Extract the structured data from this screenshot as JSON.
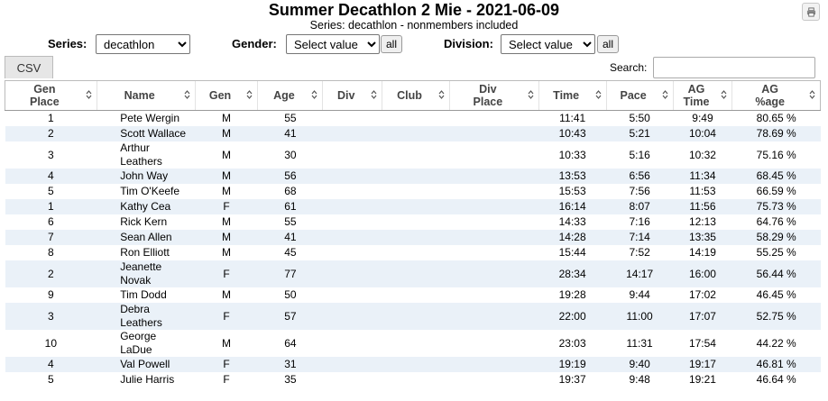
{
  "header": {
    "title": "Summer Decathlon 2 Mie - 2021-06-09",
    "subtitle": "Series: decathlon - nonmembers included"
  },
  "filters": {
    "series_label": "Series:",
    "series_value": "decathlon",
    "gender_label": "Gender:",
    "gender_value": "Select value",
    "gender_all": "all",
    "division_label": "Division:",
    "division_value": "Select value",
    "division_all": "all"
  },
  "toolbar": {
    "csv_label": "CSV",
    "search_label": "Search:",
    "search_value": ""
  },
  "icons": {
    "print": "print-icon",
    "sort": "sort-arrows-icon"
  },
  "columns": [
    {
      "l1": "Gen",
      "l2": "Place"
    },
    {
      "l1": "Name",
      "l2": ""
    },
    {
      "l1": "Gen",
      "l2": ""
    },
    {
      "l1": "Age",
      "l2": ""
    },
    {
      "l1": "Div",
      "l2": ""
    },
    {
      "l1": "Club",
      "l2": ""
    },
    {
      "l1": "Div",
      "l2": "Place"
    },
    {
      "l1": "Time",
      "l2": ""
    },
    {
      "l1": "Pace",
      "l2": ""
    },
    {
      "l1": "AG",
      "l2": "Time"
    },
    {
      "l1": "AG",
      "l2": "%age"
    }
  ],
  "rows": [
    {
      "gen_place": "1",
      "name": [
        "Pete Wergin"
      ],
      "gen": "M",
      "age": "55",
      "div": "",
      "club": "",
      "div_place": "",
      "time": "11:41",
      "pace": "5:50",
      "ag_time": "9:49",
      "ag_pct": "80.65 %"
    },
    {
      "gen_place": "2",
      "name": [
        "Scott Wallace"
      ],
      "gen": "M",
      "age": "41",
      "div": "",
      "club": "",
      "div_place": "",
      "time": "10:43",
      "pace": "5:21",
      "ag_time": "10:04",
      "ag_pct": "78.69 %"
    },
    {
      "gen_place": "3",
      "name": [
        "Arthur",
        "Leathers"
      ],
      "gen": "M",
      "age": "30",
      "div": "",
      "club": "",
      "div_place": "",
      "time": "10:33",
      "pace": "5:16",
      "ag_time": "10:32",
      "ag_pct": "75.16 %"
    },
    {
      "gen_place": "4",
      "name": [
        "John Way"
      ],
      "gen": "M",
      "age": "56",
      "div": "",
      "club": "",
      "div_place": "",
      "time": "13:53",
      "pace": "6:56",
      "ag_time": "11:34",
      "ag_pct": "68.45 %"
    },
    {
      "gen_place": "5",
      "name": [
        "Tim O'Keefe"
      ],
      "gen": "M",
      "age": "68",
      "div": "",
      "club": "",
      "div_place": "",
      "time": "15:53",
      "pace": "7:56",
      "ag_time": "11:53",
      "ag_pct": "66.59 %"
    },
    {
      "gen_place": "1",
      "name": [
        "Kathy Cea"
      ],
      "gen": "F",
      "age": "61",
      "div": "",
      "club": "",
      "div_place": "",
      "time": "16:14",
      "pace": "8:07",
      "ag_time": "11:56",
      "ag_pct": "75.73 %"
    },
    {
      "gen_place": "6",
      "name": [
        "Rick Kern"
      ],
      "gen": "M",
      "age": "55",
      "div": "",
      "club": "",
      "div_place": "",
      "time": "14:33",
      "pace": "7:16",
      "ag_time": "12:13",
      "ag_pct": "64.76 %"
    },
    {
      "gen_place": "7",
      "name": [
        "Sean Allen"
      ],
      "gen": "M",
      "age": "41",
      "div": "",
      "club": "",
      "div_place": "",
      "time": "14:28",
      "pace": "7:14",
      "ag_time": "13:35",
      "ag_pct": "58.29 %"
    },
    {
      "gen_place": "8",
      "name": [
        "Ron Elliott"
      ],
      "gen": "M",
      "age": "45",
      "div": "",
      "club": "",
      "div_place": "",
      "time": "15:44",
      "pace": "7:52",
      "ag_time": "14:19",
      "ag_pct": "55.25 %"
    },
    {
      "gen_place": "2",
      "name": [
        "Jeanette",
        "Novak"
      ],
      "gen": "F",
      "age": "77",
      "div": "",
      "club": "",
      "div_place": "",
      "time": "28:34",
      "pace": "14:17",
      "ag_time": "16:00",
      "ag_pct": "56.44 %"
    },
    {
      "gen_place": "9",
      "name": [
        "Tim Dodd"
      ],
      "gen": "M",
      "age": "50",
      "div": "",
      "club": "",
      "div_place": "",
      "time": "19:28",
      "pace": "9:44",
      "ag_time": "17:02",
      "ag_pct": "46.45 %"
    },
    {
      "gen_place": "3",
      "name": [
        "Debra",
        "Leathers"
      ],
      "gen": "F",
      "age": "57",
      "div": "",
      "club": "",
      "div_place": "",
      "time": "22:00",
      "pace": "11:00",
      "ag_time": "17:07",
      "ag_pct": "52.75 %"
    },
    {
      "gen_place": "10",
      "name": [
        "George",
        "LaDue"
      ],
      "gen": "M",
      "age": "64",
      "div": "",
      "club": "",
      "div_place": "",
      "time": "23:03",
      "pace": "11:31",
      "ag_time": "17:54",
      "ag_pct": "44.22 %"
    },
    {
      "gen_place": "4",
      "name": [
        "Val Powell"
      ],
      "gen": "F",
      "age": "31",
      "div": "",
      "club": "",
      "div_place": "",
      "time": "19:19",
      "pace": "9:40",
      "ag_time": "19:17",
      "ag_pct": "46.81 %"
    },
    {
      "gen_place": "5",
      "name": [
        "Julie Harris"
      ],
      "gen": "F",
      "age": "35",
      "div": "",
      "club": "",
      "div_place": "",
      "time": "19:37",
      "pace": "9:48",
      "ag_time": "19:21",
      "ag_pct": "46.64 %"
    }
  ]
}
